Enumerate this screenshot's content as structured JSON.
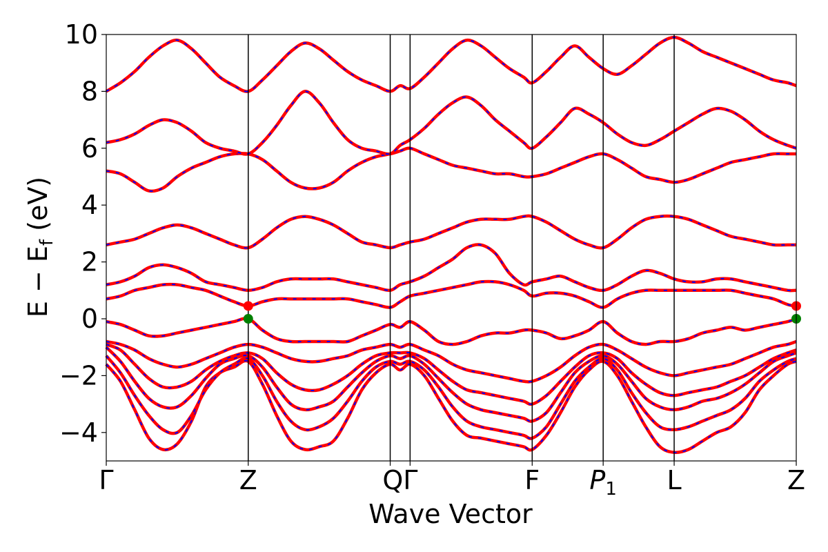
{
  "chart_data": {
    "type": "line",
    "title": "",
    "xlabel": "Wave Vector",
    "ylabel_parts": {
      "main": "E − E",
      "sub": "f",
      "tail": " (eV)"
    },
    "ylim": [
      -5,
      10
    ],
    "yticks": [
      -4,
      -2,
      0,
      2,
      4,
      6,
      8,
      10
    ],
    "ytick_labels": [
      "−4",
      "−2",
      "0",
      "2",
      "4",
      "6",
      "8",
      "10"
    ],
    "xlim": [
      0,
      4.86
    ],
    "kpoints": [
      {
        "label": "Γ",
        "pos": 0.0
      },
      {
        "label": "Z",
        "pos": 1.0
      },
      {
        "label": "Q",
        "pos": 2.0
      },
      {
        "label": "Γ",
        "pos": 2.14
      },
      {
        "label": "F",
        "pos": 3.0
      },
      {
        "label": "P₁",
        "pos": 3.5
      },
      {
        "label": "L",
        "pos": 4.0
      },
      {
        "label": "Z",
        "pos": 4.86
      }
    ],
    "kpoint_tick_text": [
      "Γ",
      "Z",
      "QΓ",
      "F",
      "P",
      "L",
      "Z"
    ],
    "kpoint_subscript": "1",
    "x_samples": [
      0,
      0.1,
      0.2,
      0.3,
      0.4,
      0.5,
      0.6,
      0.7,
      0.8,
      0.9,
      1.0,
      1.1,
      1.2,
      1.3,
      1.4,
      1.5,
      1.6,
      1.7,
      1.8,
      1.9,
      2.0,
      2.07,
      2.14,
      2.24,
      2.34,
      2.44,
      2.54,
      2.64,
      2.74,
      2.84,
      2.94,
      3.0,
      3.1,
      3.2,
      3.3,
      3.4,
      3.5,
      3.6,
      3.7,
      3.8,
      3.9,
      4.0,
      4.1,
      4.2,
      4.3,
      4.4,
      4.5,
      4.6,
      4.7,
      4.8,
      4.86
    ],
    "series": [
      {
        "values": [
          -1.6,
          -2.2,
          -3.2,
          -4.2,
          -4.6,
          -4.4,
          -3.6,
          -2.4,
          -1.9,
          -1.7,
          -1.5,
          -2.3,
          -3.4,
          -4.3,
          -4.6,
          -4.5,
          -4.3,
          -3.5,
          -2.5,
          -1.9,
          -1.6,
          -1.8,
          -1.6,
          -2.0,
          -2.8,
          -3.6,
          -4.1,
          -4.2,
          -4.3,
          -4.4,
          -4.5,
          -4.6,
          -4.1,
          -3.3,
          -2.4,
          -1.8,
          -1.5,
          -2.0,
          -2.9,
          -3.8,
          -4.5,
          -4.7,
          -4.6,
          -4.3,
          -4.0,
          -3.8,
          -3.3,
          -2.5,
          -2.0,
          -1.6,
          -1.5
        ]
      },
      {
        "values": [
          -1.3,
          -1.9,
          -2.7,
          -3.4,
          -3.9,
          -4.0,
          -3.4,
          -2.5,
          -1.9,
          -1.6,
          -1.4,
          -2.0,
          -2.9,
          -3.6,
          -3.9,
          -3.8,
          -3.5,
          -2.9,
          -2.2,
          -1.7,
          -1.5,
          -1.6,
          -1.5,
          -1.8,
          -2.4,
          -3.1,
          -3.6,
          -3.8,
          -3.9,
          -4.0,
          -4.1,
          -4.2,
          -3.8,
          -3.0,
          -2.2,
          -1.7,
          -1.4,
          -1.8,
          -2.6,
          -3.3,
          -3.8,
          -3.9,
          -3.8,
          -3.6,
          -3.4,
          -3.2,
          -2.8,
          -2.2,
          -1.8,
          -1.5,
          -1.4
        ]
      },
      {
        "values": [
          -1.0,
          -1.5,
          -2.2,
          -2.8,
          -3.1,
          -3.1,
          -2.7,
          -2.1,
          -1.6,
          -1.4,
          -1.3,
          -1.7,
          -2.4,
          -3.0,
          -3.2,
          -3.1,
          -2.9,
          -2.4,
          -1.9,
          -1.5,
          -1.3,
          -1.4,
          -1.3,
          -1.6,
          -2.1,
          -2.6,
          -3.0,
          -3.2,
          -3.3,
          -3.4,
          -3.5,
          -3.6,
          -3.3,
          -2.6,
          -1.9,
          -1.5,
          -1.3,
          -1.6,
          -2.2,
          -2.8,
          -3.1,
          -3.2,
          -3.1,
          -2.9,
          -2.8,
          -2.6,
          -2.3,
          -1.9,
          -1.5,
          -1.3,
          -1.2
        ]
      },
      {
        "values": [
          -0.9,
          -1.1,
          -1.6,
          -2.1,
          -2.4,
          -2.4,
          -2.2,
          -1.8,
          -1.5,
          -1.3,
          -1.2,
          -1.4,
          -1.9,
          -2.3,
          -2.5,
          -2.5,
          -2.3,
          -2.0,
          -1.6,
          -1.3,
          -1.2,
          -1.2,
          -1.2,
          -1.4,
          -1.8,
          -2.2,
          -2.5,
          -2.6,
          -2.7,
          -2.8,
          -2.9,
          -3.0,
          -2.7,
          -2.2,
          -1.7,
          -1.3,
          -1.2,
          -1.4,
          -1.9,
          -2.3,
          -2.6,
          -2.7,
          -2.6,
          -2.5,
          -2.4,
          -2.2,
          -2.0,
          -1.7,
          -1.4,
          -1.2,
          -1.1
        ]
      },
      {
        "values": [
          -0.8,
          -0.9,
          -1.1,
          -1.4,
          -1.6,
          -1.7,
          -1.6,
          -1.4,
          -1.2,
          -1.0,
          -0.9,
          -1.0,
          -1.2,
          -1.4,
          -1.5,
          -1.5,
          -1.4,
          -1.3,
          -1.1,
          -1.0,
          -0.9,
          -1.0,
          -0.9,
          -1.1,
          -1.3,
          -1.6,
          -1.8,
          -1.9,
          -2.0,
          -2.1,
          -2.2,
          -2.2,
          -2.0,
          -1.7,
          -1.3,
          -1.0,
          -0.9,
          -1.1,
          -1.4,
          -1.7,
          -1.9,
          -2.0,
          -1.9,
          -1.8,
          -1.7,
          -1.6,
          -1.4,
          -1.2,
          -1.0,
          -0.9,
          -0.8
        ]
      },
      {
        "values": [
          -0.1,
          -0.2,
          -0.4,
          -0.6,
          -0.6,
          -0.5,
          -0.4,
          -0.3,
          -0.2,
          -0.1,
          0.0,
          -0.4,
          -0.7,
          -0.8,
          -0.8,
          -0.8,
          -0.8,
          -0.8,
          -0.6,
          -0.4,
          -0.2,
          -0.3,
          -0.1,
          -0.4,
          -0.8,
          -0.9,
          -0.8,
          -0.6,
          -0.5,
          -0.5,
          -0.4,
          -0.4,
          -0.5,
          -0.7,
          -0.6,
          -0.4,
          -0.1,
          -0.5,
          -0.8,
          -0.9,
          -0.8,
          -0.8,
          -0.7,
          -0.5,
          -0.4,
          -0.3,
          -0.4,
          -0.3,
          -0.2,
          -0.1,
          0.0
        ]
      },
      {
        "values": [
          0.7,
          0.8,
          1.0,
          1.1,
          1.2,
          1.2,
          1.1,
          1.0,
          0.8,
          0.6,
          0.45,
          0.6,
          0.7,
          0.7,
          0.7,
          0.7,
          0.7,
          0.7,
          0.6,
          0.5,
          0.4,
          0.6,
          0.8,
          0.9,
          1.0,
          1.1,
          1.2,
          1.3,
          1.3,
          1.2,
          1.0,
          0.8,
          0.9,
          0.9,
          0.8,
          0.6,
          0.4,
          0.7,
          0.9,
          1.0,
          1.0,
          1.0,
          1.0,
          1.0,
          1.0,
          1.0,
          0.9,
          0.8,
          0.7,
          0.5,
          0.45
        ]
      },
      {
        "values": [
          1.2,
          1.3,
          1.5,
          1.8,
          1.9,
          1.8,
          1.6,
          1.3,
          1.2,
          1.1,
          1.0,
          1.1,
          1.3,
          1.4,
          1.4,
          1.4,
          1.4,
          1.3,
          1.2,
          1.1,
          1.0,
          1.2,
          1.3,
          1.5,
          1.8,
          2.1,
          2.5,
          2.6,
          2.3,
          1.6,
          1.2,
          1.3,
          1.4,
          1.5,
          1.3,
          1.1,
          1.0,
          1.2,
          1.5,
          1.7,
          1.6,
          1.4,
          1.3,
          1.3,
          1.4,
          1.4,
          1.3,
          1.2,
          1.1,
          1.0,
          1.0
        ]
      },
      {
        "values": [
          2.6,
          2.7,
          2.8,
          3.0,
          3.2,
          3.3,
          3.2,
          3.0,
          2.8,
          2.6,
          2.5,
          2.8,
          3.2,
          3.5,
          3.6,
          3.5,
          3.3,
          3.0,
          2.7,
          2.6,
          2.5,
          2.6,
          2.7,
          2.8,
          3.0,
          3.2,
          3.4,
          3.5,
          3.5,
          3.5,
          3.6,
          3.6,
          3.4,
          3.1,
          2.8,
          2.6,
          2.5,
          2.8,
          3.2,
          3.5,
          3.6,
          3.6,
          3.5,
          3.3,
          3.1,
          2.9,
          2.8,
          2.7,
          2.6,
          2.6,
          2.6
        ]
      },
      {
        "values": [
          5.2,
          5.1,
          4.8,
          4.5,
          4.6,
          5.0,
          5.3,
          5.5,
          5.7,
          5.8,
          5.8,
          5.6,
          5.2,
          4.8,
          4.6,
          4.6,
          4.8,
          5.2,
          5.5,
          5.7,
          5.8,
          5.9,
          6.0,
          5.8,
          5.6,
          5.4,
          5.3,
          5.2,
          5.1,
          5.1,
          5.0,
          5.0,
          5.1,
          5.3,
          5.5,
          5.7,
          5.8,
          5.6,
          5.3,
          5.0,
          4.9,
          4.8,
          4.9,
          5.1,
          5.3,
          5.5,
          5.6,
          5.7,
          5.8,
          5.8,
          5.8
        ]
      },
      {
        "values": [
          6.2,
          6.3,
          6.5,
          6.8,
          7.0,
          6.9,
          6.6,
          6.2,
          6.0,
          5.9,
          5.8,
          6.2,
          6.8,
          7.5,
          8.0,
          7.6,
          6.9,
          6.3,
          6.0,
          5.9,
          5.8,
          6.1,
          6.3,
          6.7,
          7.2,
          7.6,
          7.8,
          7.5,
          7.0,
          6.6,
          6.2,
          6.0,
          6.4,
          6.9,
          7.4,
          7.2,
          6.9,
          6.5,
          6.2,
          6.1,
          6.3,
          6.6,
          6.9,
          7.2,
          7.4,
          7.3,
          7.0,
          6.6,
          6.3,
          6.1,
          6.0
        ]
      },
      {
        "values": [
          8.0,
          8.3,
          8.7,
          9.2,
          9.6,
          9.8,
          9.5,
          9.0,
          8.5,
          8.2,
          8.0,
          8.4,
          8.9,
          9.4,
          9.7,
          9.5,
          9.1,
          8.7,
          8.4,
          8.2,
          8.0,
          8.2,
          8.1,
          8.5,
          9.0,
          9.5,
          9.8,
          9.6,
          9.2,
          8.8,
          8.5,
          8.3,
          8.7,
          9.2,
          9.6,
          9.2,
          8.8,
          8.6,
          8.9,
          9.3,
          9.7,
          9.9,
          9.7,
          9.4,
          9.2,
          9.0,
          8.8,
          8.6,
          8.4,
          8.3,
          8.2
        ]
      }
    ],
    "band_edge_markers": [
      {
        "x": 1.0,
        "y": 0.45,
        "color": "#ff0000"
      },
      {
        "x": 1.0,
        "y": 0.0,
        "color": "#008000"
      },
      {
        "x": 4.86,
        "y": 0.45,
        "color": "#ff0000"
      },
      {
        "x": 4.86,
        "y": 0.0,
        "color": "#008000"
      }
    ],
    "colors": {
      "band_line": "#ff0000",
      "band_dash": "#0000ff",
      "kpoint_line": "#000000",
      "frame": "#000000"
    }
  }
}
